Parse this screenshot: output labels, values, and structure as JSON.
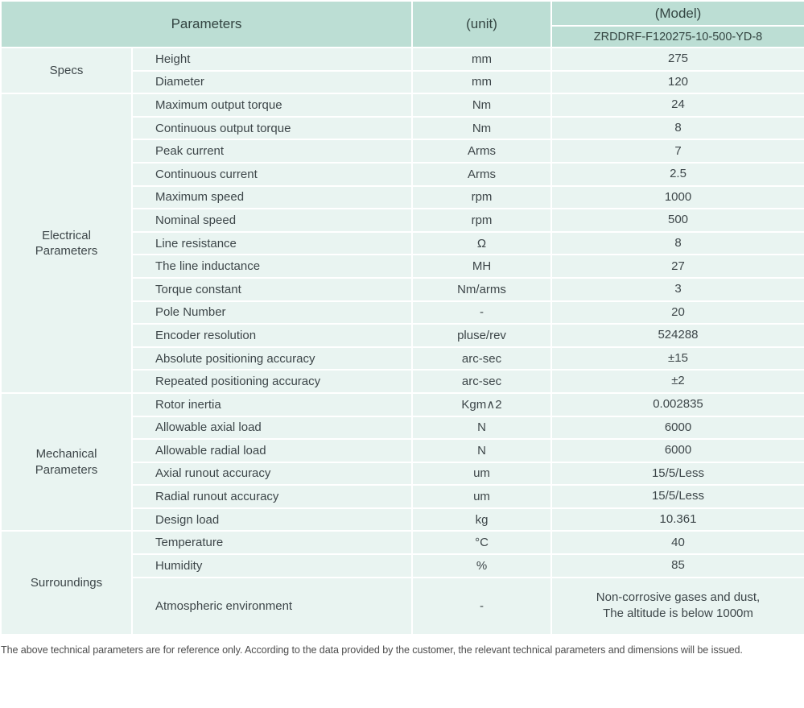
{
  "table": {
    "header": {
      "parameters_label": "Parameters",
      "unit_label": "(unit)",
      "model_label": "(Model)",
      "model_value": "ZRDDRF-F120275-10-500-YD-8"
    },
    "groups": [
      {
        "category": "Specs",
        "rows": [
          [
            "Height",
            "mm",
            "275"
          ],
          [
            "Diameter",
            "mm",
            "120"
          ]
        ]
      },
      {
        "category": "Electrical\nParameters",
        "rows": [
          [
            "Maximum output torque",
            "Nm",
            "24"
          ],
          [
            "Continuous output torque",
            "Nm",
            "8"
          ],
          [
            "Peak current",
            "Arms",
            "7"
          ],
          [
            "Continuous current",
            "Arms",
            "2.5"
          ],
          [
            "Maximum speed",
            "rpm",
            "1000"
          ],
          [
            "Nominal speed",
            "rpm",
            "500"
          ],
          [
            "Line resistance",
            "Ω",
            "8"
          ],
          [
            "The line inductance",
            "MH",
            "27"
          ],
          [
            "Torque constant",
            "Nm/arms",
            "3"
          ],
          [
            "Pole Number",
            "-",
            "20"
          ],
          [
            "Encoder resolution",
            "pluse/rev",
            "524288"
          ],
          [
            "Absolute positioning accuracy",
            "arc-sec",
            "±15"
          ],
          [
            "Repeated positioning accuracy",
            "arc-sec",
            "±2"
          ]
        ]
      },
      {
        "category": "Mechanical\nParameters",
        "rows": [
          [
            "Rotor inertia",
            "Kgm∧2",
            "0.002835"
          ],
          [
            "Allowable axial load",
            "N",
            "6000"
          ],
          [
            "Allowable radial load",
            "N",
            "6000"
          ],
          [
            "Axial runout accuracy",
            "um",
            "15/5/Less"
          ],
          [
            "Radial runout accuracy",
            "um",
            "15/5/Less"
          ],
          [
            "Design load",
            "kg",
            "10.361"
          ]
        ]
      },
      {
        "category": "Surroundings",
        "rows": [
          [
            "Temperature",
            "°C",
            "40"
          ],
          [
            "Humidity",
            "%",
            "85"
          ],
          [
            "Atmospheric environment",
            "-",
            "Non-corrosive gases and dust,\nThe altitude is below 1000m"
          ]
        ]
      }
    ],
    "footnote": "The above technical parameters are for reference only. According to the data provided by the customer, the relevant technical parameters and dimensions will be issued."
  },
  "colors": {
    "header_bg": "#bcded4",
    "row_bg": "#e9f4f1",
    "border": "#ffffff",
    "text": "#3d4649",
    "header_text": "#344542",
    "footnote_text": "#4d4d4d"
  }
}
